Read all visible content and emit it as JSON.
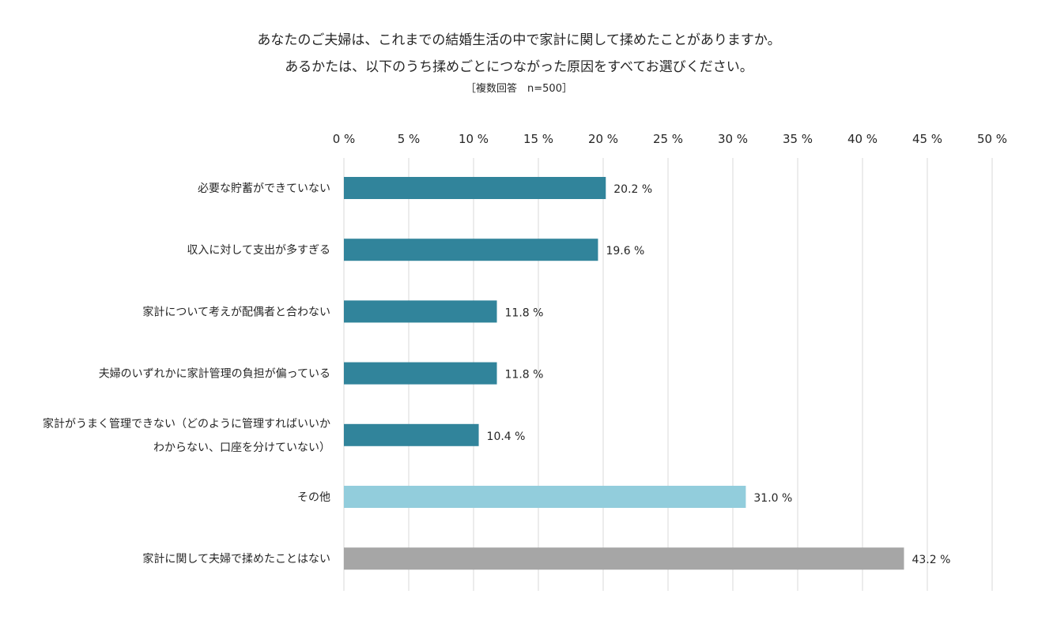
{
  "chart_data": {
    "type": "bar",
    "orientation": "horizontal",
    "title": "あなたのご夫婦は、これまでの結婚生活の中で家計に関して揉めたことがありますか。",
    "title_line2": "あるかたは、以下のうち揉めごとにつながった原因をすべてお選びください。",
    "subtitle": "［複数回答　n=500］",
    "xlabel": "",
    "ylabel": "",
    "xlim": [
      0,
      50
    ],
    "x_ticks": [
      "0 %",
      "5 %",
      "10 %",
      "15 %",
      "20 %",
      "25 %",
      "30 %",
      "35 %",
      "40 %",
      "45 %",
      "50 %"
    ],
    "x_tick_values": [
      0,
      5,
      10,
      15,
      20,
      25,
      30,
      35,
      40,
      45,
      50
    ],
    "x_axis_position": "top",
    "grid": true,
    "legend": "none",
    "categories": [
      [
        "必要な貯蓄ができていない"
      ],
      [
        "収入に対して支出が多すぎる"
      ],
      [
        "家計について考えが配偶者と合わない"
      ],
      [
        "夫婦のいずれかに家計管理の負担が偏っている"
      ],
      [
        "家計がうまく管理できない（どのように管理すればいいか",
        "わからない、口座を分けていない）"
      ],
      [
        "その他"
      ],
      [
        "家計に関して夫婦で揉めたことはない"
      ]
    ],
    "values": [
      20.2,
      19.6,
      11.8,
      11.8,
      10.4,
      31.0,
      43.2
    ],
    "value_labels": [
      "20.2 %",
      "19.6 %",
      "11.8 %",
      "11.8 %",
      "10.4 %",
      "31.0 %",
      "43.2 %"
    ],
    "bar_colors": [
      "#31849b",
      "#31849b",
      "#31849b",
      "#31849b",
      "#31849b",
      "#92cddc",
      "#a6a6a6"
    ],
    "grid_color": "#d9d9d9"
  }
}
